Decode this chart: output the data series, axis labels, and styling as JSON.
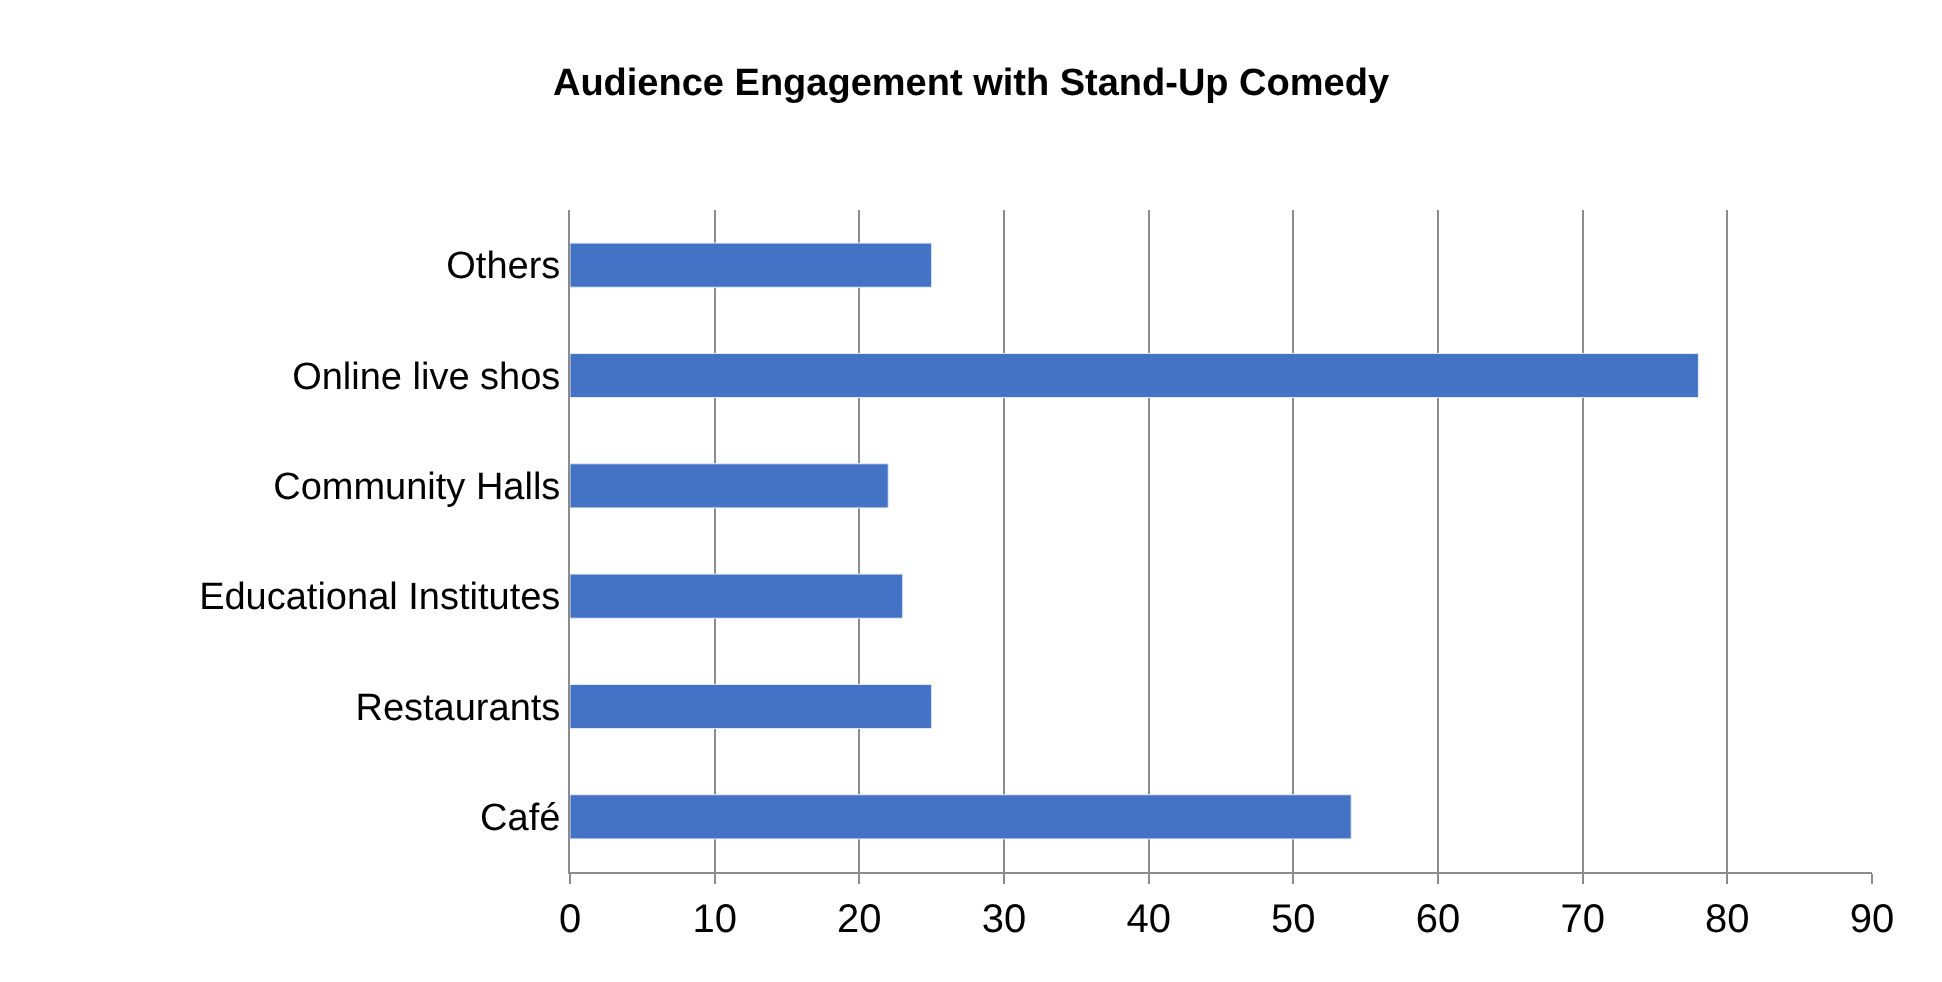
{
  "chart_data": {
    "type": "bar",
    "orientation": "horizontal",
    "title": "Audience Engagement with Stand-Up Comedy",
    "categories": [
      "Others",
      "Online live shos",
      "Community Halls",
      "Educational Institutes",
      "Restaurants",
      "Café"
    ],
    "values": [
      25,
      78,
      22,
      23,
      25,
      54
    ],
    "color": "#4472c4",
    "xlim": [
      0,
      90
    ],
    "xticks": [
      0,
      10,
      20,
      30,
      40,
      50,
      60,
      70,
      80,
      90
    ],
    "grid": "x",
    "legend": false
  }
}
